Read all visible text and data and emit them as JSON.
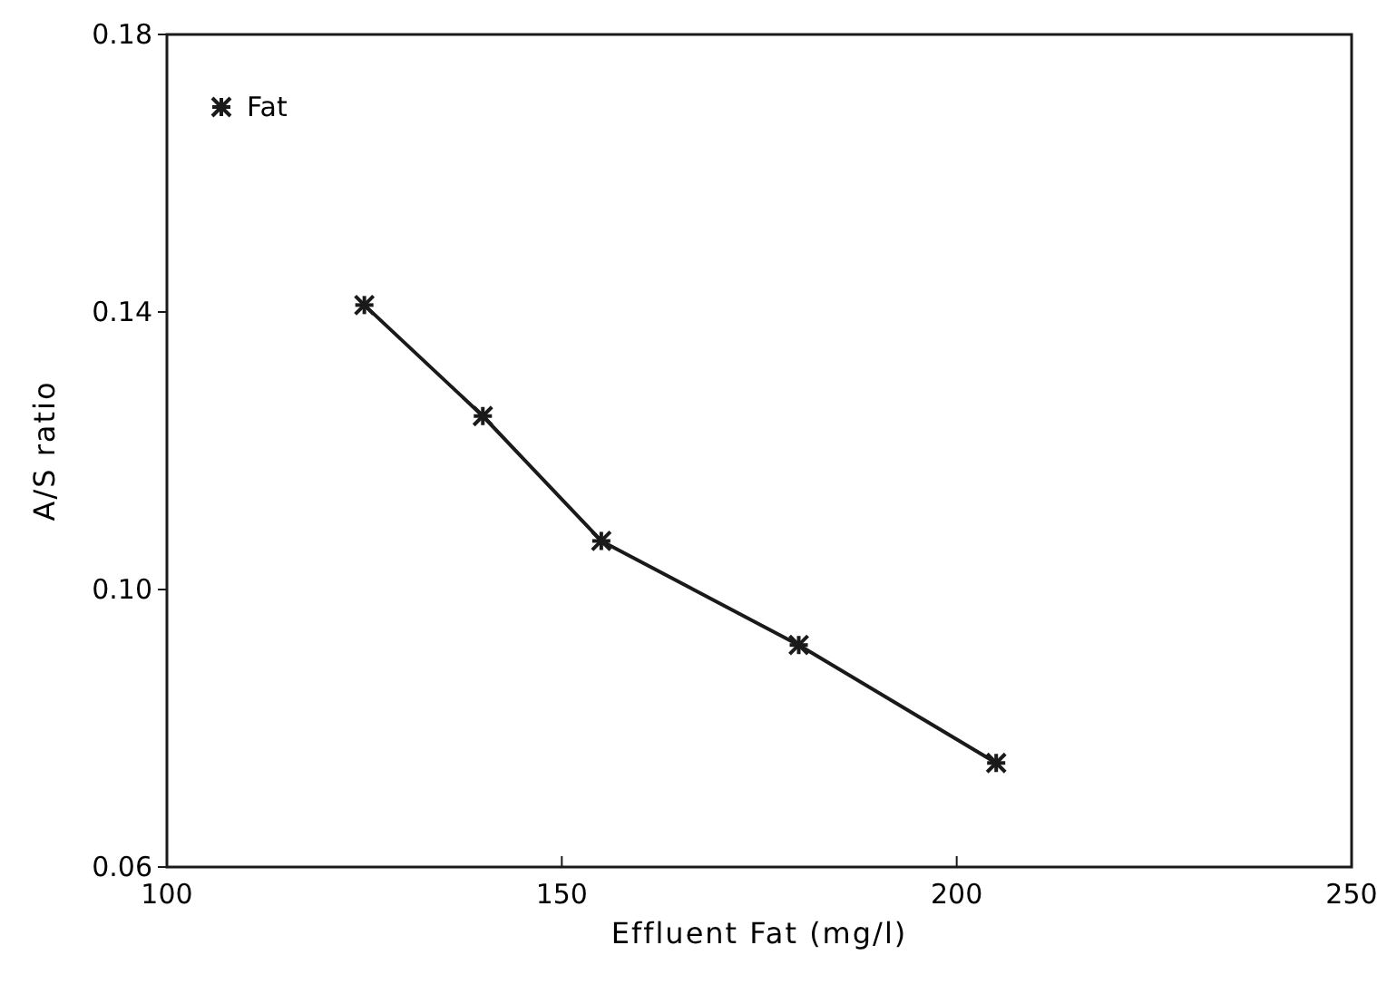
{
  "chart_data": {
    "type": "line",
    "xlabel": "Effluent Fat (mg/l)",
    "ylabel": "A/S ratio",
    "x": [
      125,
      140,
      155,
      180,
      205
    ],
    "series": [
      {
        "name": "Fat",
        "color": "#1a1a1a",
        "values": [
          0.141,
          0.125,
          0.107,
          0.092,
          0.075
        ]
      }
    ],
    "xlim": [
      100,
      250
    ],
    "xticks": [
      100,
      150,
      200,
      250
    ],
    "ylim": [
      0.06,
      0.18
    ],
    "yticks": [
      {
        "value": 0.06,
        "label": "0.06"
      },
      {
        "value": 0.1,
        "label": "0.10"
      },
      {
        "value": 0.14,
        "label": "0.14"
      },
      {
        "value": 0.18,
        "label": "0.18"
      }
    ],
    "marker": "cross",
    "line_style": "solid",
    "legend": "top left",
    "grid": false
  }
}
